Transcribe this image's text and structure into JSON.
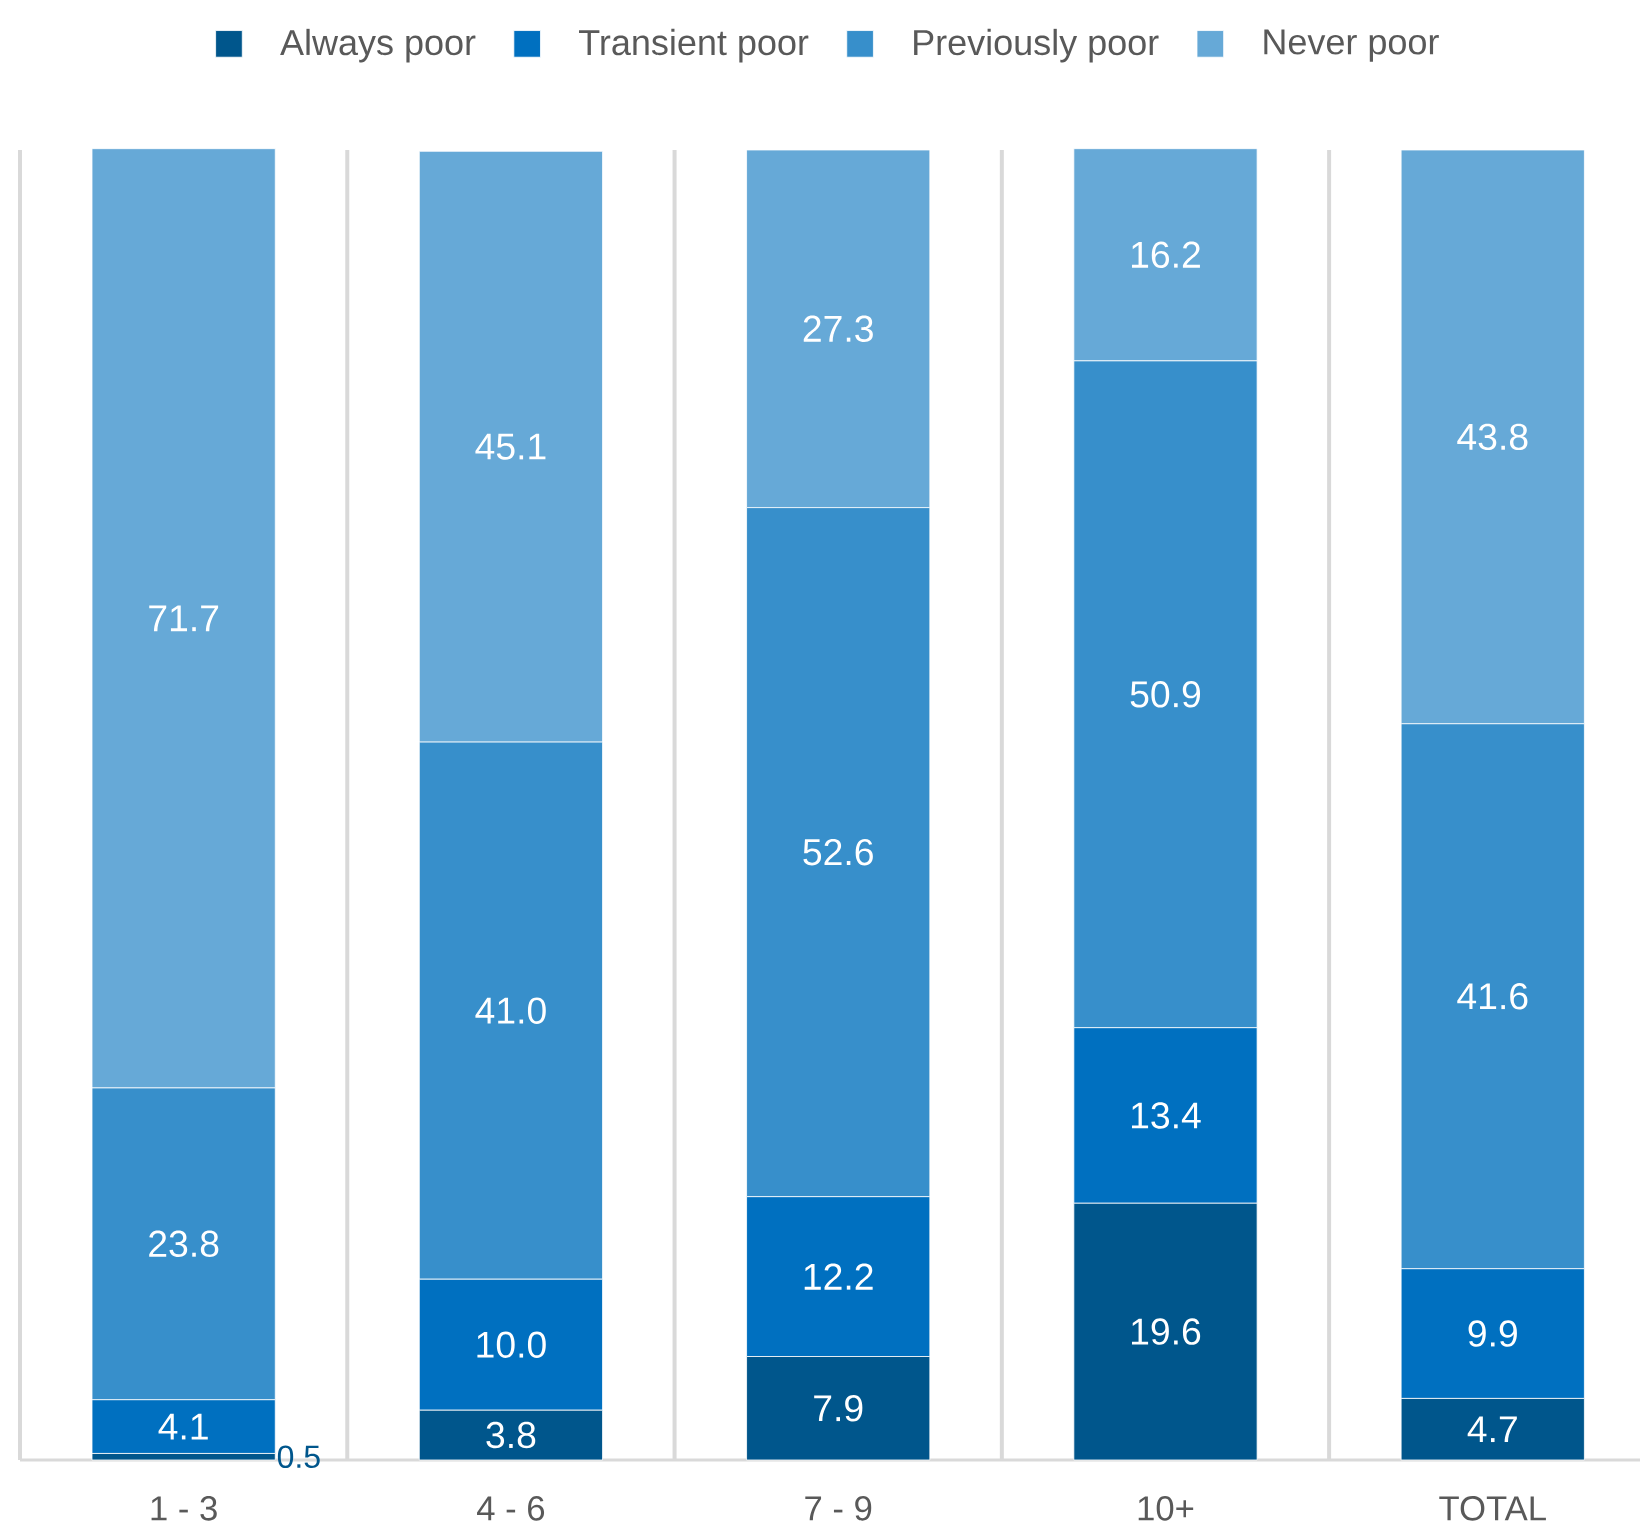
{
  "chart_data": {
    "type": "bar",
    "stacked": true,
    "categories": [
      "1 - 3",
      "4 - 6",
      "7 - 9",
      "10+",
      "TOTAL"
    ],
    "series": [
      {
        "name": "Always poor",
        "color": "#00568c",
        "values": [
          0.5,
          3.8,
          7.9,
          19.6,
          4.7
        ],
        "value_labels": [
          "0.5",
          "3.8",
          "7.9",
          "19.6",
          "4.7"
        ]
      },
      {
        "name": "Transient poor",
        "color": "#0070c0",
        "values": [
          4.1,
          10.0,
          12.2,
          13.4,
          9.9
        ],
        "value_labels": [
          "4.1",
          "10.0",
          "12.2",
          "13.4",
          "9.9"
        ]
      },
      {
        "name": "Previously poor",
        "color": "#378fcb",
        "values": [
          23.8,
          41.0,
          52.6,
          50.9,
          41.6
        ],
        "value_labels": [
          "23.8",
          "41.0",
          "52.6",
          "50.9",
          "41.6"
        ]
      },
      {
        "name": "Never poor",
        "color": "#66a9d7",
        "values": [
          71.7,
          45.1,
          27.3,
          16.2,
          43.8
        ],
        "value_labels": [
          "71.7",
          "45.1",
          "27.3",
          "16.2",
          "43.8"
        ]
      }
    ],
    "ylim": [
      0,
      100
    ],
    "grid": "x",
    "legend": "top",
    "tick_labels": "x"
  }
}
